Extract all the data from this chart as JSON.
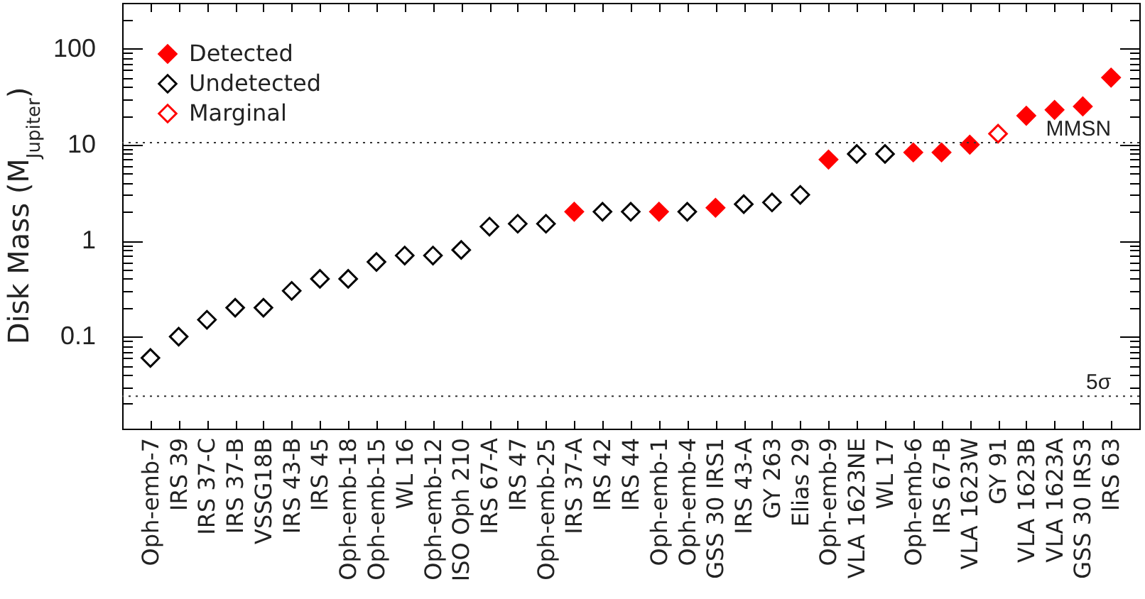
{
  "chart_data": {
    "type": "scatter",
    "ylabel": "Disk Mass (M$_{Jupiter}$)",
    "categories": [
      "Oph-emb-7",
      "IRS 39",
      "IRS 37-C",
      "IRS 37-B",
      "VSSG18B",
      "IRS 43-B",
      "IRS 45",
      "Oph-emb-18",
      "Oph-emb-15",
      "WL 16",
      "Oph-emb-12",
      "ISO Oph 210",
      "IRS 67-A",
      "IRS 47",
      "Oph-emb-25",
      "IRS 37-A",
      "IRS 42",
      "IRS 44",
      "Oph-emb-1",
      "Oph-emb-4",
      "GSS 30 IRS1",
      "IRS 43-A",
      "GY 263",
      "Elias 29",
      "Oph-emb-9",
      "VLA 1623NE",
      "WL 17",
      "Oph-emb-6",
      "IRS 67-B",
      "VLA 1623W",
      "GY 91",
      "VLA 1623B",
      "VLA 1623A",
      "GSS 30 IRS3",
      "IRS 63"
    ],
    "series": [
      {
        "name": "Detected",
        "color": "#ff0000",
        "marker": "diamond",
        "values": [
          null,
          null,
          null,
          null,
          null,
          null,
          null,
          null,
          null,
          null,
          null,
          null,
          null,
          null,
          null,
          2.0,
          null,
          null,
          2.0,
          null,
          2.2,
          null,
          null,
          null,
          7,
          null,
          null,
          8.3,
          8.3,
          10,
          null,
          20,
          23,
          25,
          50
        ]
      },
      {
        "name": "Undetected",
        "color": "#000000",
        "marker": "diamond-open",
        "values": [
          0.06,
          0.1,
          0.15,
          0.2,
          0.2,
          0.3,
          0.4,
          0.4,
          0.6,
          0.7,
          0.7,
          0.8,
          1.4,
          1.5,
          1.5,
          null,
          2.0,
          2.0,
          null,
          2.0,
          null,
          2.4,
          2.5,
          3.0,
          null,
          8,
          8,
          null,
          null,
          null,
          null,
          null,
          null,
          null,
          null
        ]
      },
      {
        "name": "Marginal",
        "color": "#ff0000",
        "marker": "diamond-open",
        "values": [
          null,
          null,
          null,
          null,
          null,
          null,
          null,
          null,
          null,
          null,
          null,
          null,
          null,
          null,
          null,
          null,
          null,
          null,
          null,
          null,
          null,
          null,
          null,
          null,
          null,
          null,
          null,
          null,
          null,
          null,
          13,
          null,
          null,
          null,
          null
        ]
      }
    ],
    "log": "y",
    "ylim": [
      0.011,
      300
    ],
    "yticks": [
      {
        "value": 0.02,
        "label": null
      },
      {
        "value": 0.03,
        "label": null
      },
      {
        "value": 0.04,
        "label": null
      },
      {
        "value": 0.05,
        "label": null
      },
      {
        "value": 0.06,
        "label": null
      },
      {
        "value": 0.07,
        "label": null
      },
      {
        "value": 0.08,
        "label": null
      },
      {
        "value": 0.09,
        "label": null
      },
      0.1,
      {
        "value": 0.2,
        "label": null
      },
      {
        "value": 0.3,
        "label": null
      },
      {
        "value": 0.4,
        "label": null
      },
      {
        "value": 0.5,
        "label": null
      },
      {
        "value": 0.6,
        "label": null
      },
      {
        "value": 0.7,
        "label": null
      },
      {
        "value": 0.8,
        "label": null
      },
      {
        "value": 0.9,
        "label": null
      },
      1,
      {
        "value": 2,
        "label": null
      },
      {
        "value": 3,
        "label": null
      },
      {
        "value": 4,
        "label": null
      },
      {
        "value": 5,
        "label": null
      },
      {
        "value": 6,
        "label": null
      },
      {
        "value": 7,
        "label": null
      },
      {
        "value": 8,
        "label": null
      },
      {
        "value": 9,
        "label": null
      },
      10,
      {
        "value": 20,
        "label": null
      },
      {
        "value": 30,
        "label": null
      },
      {
        "value": 40,
        "label": null
      },
      {
        "value": 50,
        "label": null
      },
      {
        "value": 60,
        "label": null
      },
      {
        "value": 70,
        "label": null
      },
      {
        "value": 80,
        "label": null
      },
      {
        "value": 90,
        "label": null
      },
      100,
      {
        "value": 200,
        "label": null
      }
    ],
    "legend": "top left",
    "ref_lines": [
      {
        "axis": "y",
        "value": 10.5,
        "label": "MMSN",
        "line_style": "dotted"
      },
      {
        "axis": "y",
        "value": 0.024,
        "label": "5σ",
        "line_style": "dotted"
      }
    ]
  }
}
